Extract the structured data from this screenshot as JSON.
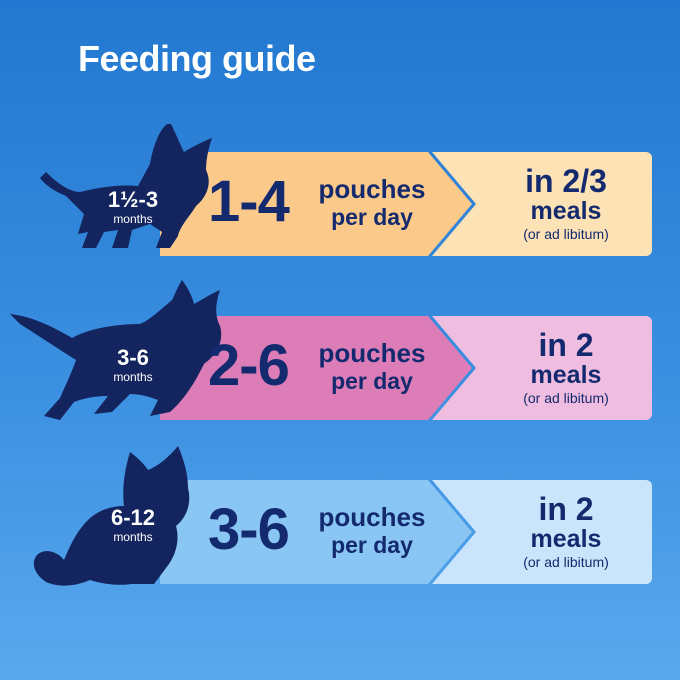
{
  "title": "Feeding guide",
  "rows": [
    {
      "age": "1½-3",
      "age_unit": "months",
      "quantity": "1-4",
      "unit_line1": "pouches",
      "unit_line2": "per day",
      "meals_count": "in 2/3",
      "meals_label": "meals",
      "meals_note": "(or ad libitum)",
      "color_left": "#fbc98a",
      "color_right": "#fde2b6",
      "icon": "kitten-silhouette-icon"
    },
    {
      "age": "3-6",
      "age_unit": "months",
      "quantity": "2-6",
      "unit_line1": "pouches",
      "unit_line2": "per day",
      "meals_count": "in 2",
      "meals_label": "meals",
      "meals_note": "(or ad libitum)",
      "color_left": "#dd7db8",
      "color_right": "#efbde0",
      "icon": "running-cat-silhouette-icon"
    },
    {
      "age": "6-12",
      "age_unit": "months",
      "quantity": "3-6",
      "unit_line1": "pouches",
      "unit_line2": "per day",
      "meals_count": "in 2",
      "meals_label": "meals",
      "meals_note": "(or ad libitum)",
      "color_left": "#8ac6f3",
      "color_right": "#c8e5fb",
      "icon": "sitting-cat-silhouette-icon"
    }
  ],
  "colors": {
    "text_dark": "#142a6e",
    "cat_silhouette": "#13245e",
    "background": "#2a80d8"
  }
}
